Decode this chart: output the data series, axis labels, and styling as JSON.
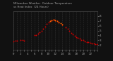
{
  "bg_color": "#111111",
  "plot_bg_color": "#111111",
  "grid_color": "#333333",
  "text_color": "#aaaaaa",
  "ylim": [
    10,
    90
  ],
  "xlim": [
    0,
    24
  ],
  "xticks": [
    0,
    1,
    2,
    3,
    4,
    5,
    6,
    7,
    8,
    9,
    10,
    11,
    12,
    13,
    14,
    15,
    16,
    17,
    18,
    19,
    20,
    21,
    22,
    23,
    24
  ],
  "xtick_labels": [
    "0",
    "",
    "2",
    "",
    "4",
    "",
    "6",
    "",
    "8",
    "",
    "10",
    "",
    "12",
    "",
    "14",
    "",
    "16",
    "",
    "18",
    "",
    "20",
    "",
    "22",
    "",
    ""
  ],
  "yticks": [
    20,
    30,
    40,
    50,
    60,
    70,
    80
  ],
  "ytick_labels": [
    "2",
    "3",
    "4",
    "5",
    "6",
    "7",
    "8"
  ],
  "temp_x": [
    0,
    0.5,
    1,
    2,
    2.5,
    3,
    6,
    6.5,
    7,
    7.5,
    8,
    8.5,
    9,
    9.5,
    10,
    10.5,
    11,
    11.5,
    12,
    12.5,
    13,
    14,
    15,
    15.5,
    16,
    16.5,
    17,
    17.5,
    18,
    18.5,
    19,
    19.5,
    20,
    20.5,
    21,
    21.5,
    22,
    22.5,
    23,
    23.5,
    24
  ],
  "temp_y": [
    28,
    29,
    29,
    30,
    30,
    29,
    40,
    41,
    43,
    46,
    50,
    54,
    58,
    63,
    67,
    69,
    71,
    72,
    71,
    69,
    67,
    62,
    57,
    53,
    49,
    45,
    42,
    39,
    37,
    35,
    33,
    31,
    30,
    28,
    27,
    26,
    25,
    24,
    23,
    22,
    22
  ],
  "heat_x": [
    10.5,
    11,
    11.5,
    12,
    12.5,
    13,
    13.5,
    14
  ],
  "heat_y": [
    69,
    71,
    72,
    71,
    69,
    67,
    65,
    62
  ],
  "temp_color": "#dd0000",
  "heat_color": "#ff6600",
  "dot_size": 1.8,
  "legend_orange": "#ffaa00",
  "legend_red": "#ff0000",
  "title_text": "Milwaukee Weather  Outdoor Temperature\nvs Heat Index  (24 Hours)"
}
